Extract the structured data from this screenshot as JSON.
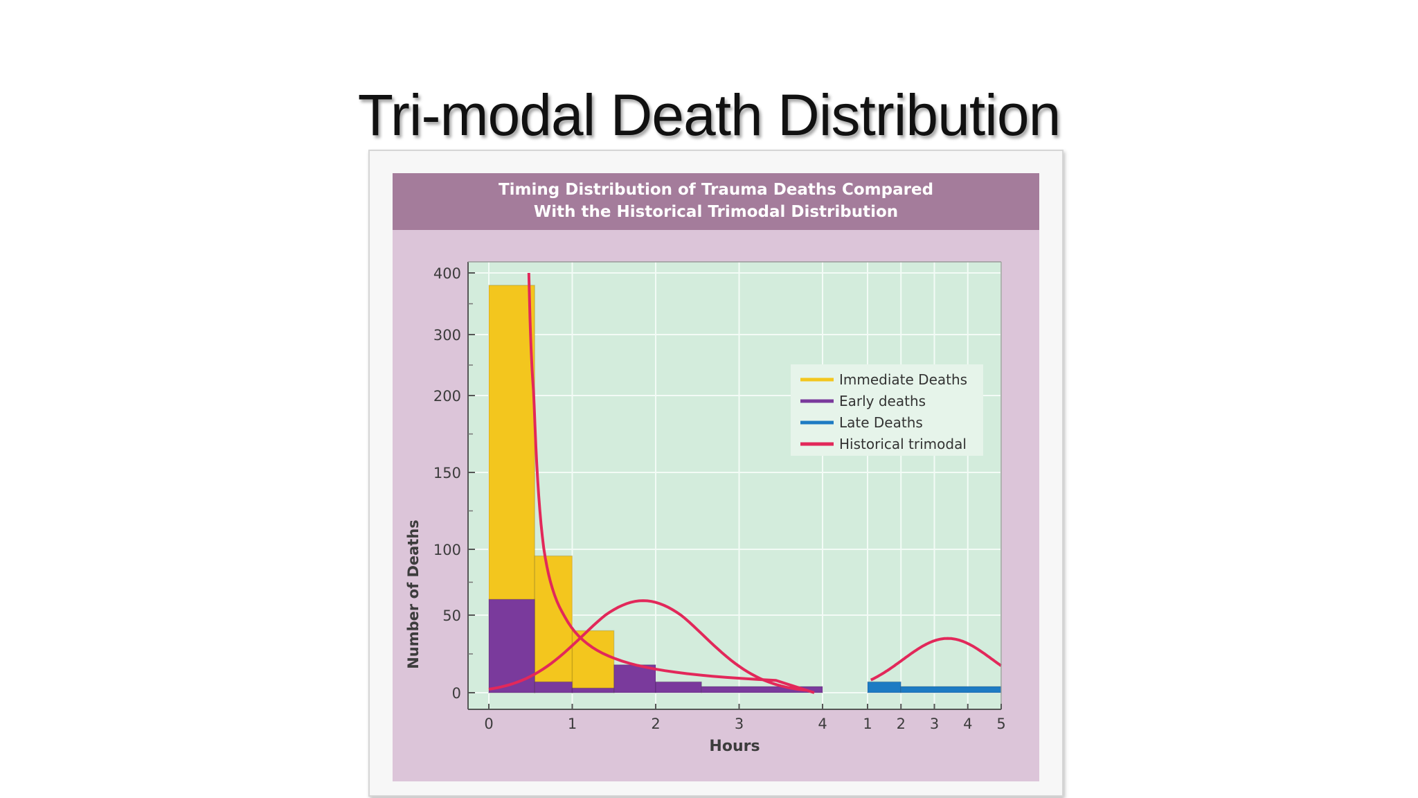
{
  "slide": {
    "title": "Tri-modal Death Distribution"
  },
  "colors": {
    "panel_bg": "#dcc5d9",
    "header_bg": "#a47c9b",
    "plot_bg": "#d3ecdc",
    "grid": "#f3fbf6",
    "immediate": "#f3c61e",
    "early": "#7a3a9c",
    "late": "#1d7bc3",
    "historical": "#e2285a"
  },
  "chart_data": {
    "type": "bar",
    "title": "Timing Distribution of Trauma Deaths Compared",
    "subtitle": "With the Historical Trimodal Distribution",
    "xlabel": "Hours",
    "ylabel": "Number of Deaths",
    "grid": true,
    "legend_position": "top-right",
    "ylim": [
      0,
      400
    ],
    "y_ticks": [
      "0",
      "50",
      "100",
      "150",
      "200",
      "300",
      "400"
    ],
    "y_tick_values": [
      0,
      50,
      100,
      150,
      200,
      300,
      400
    ],
    "x_segments": [
      {
        "name": "hours",
        "range": [
          0,
          4
        ],
        "ticks": [
          "0",
          "1",
          "2",
          "3",
          "4"
        ],
        "tick_values": [
          0,
          1,
          2,
          3,
          4
        ]
      },
      {
        "name": "later",
        "range": [
          1,
          5
        ],
        "ticks": [
          "1",
          "2",
          "3",
          "4",
          "5"
        ],
        "tick_values": [
          1,
          2,
          3,
          4,
          5
        ]
      }
    ],
    "legend": [
      {
        "key": "immediate",
        "label": "Immediate Deaths"
      },
      {
        "key": "early",
        "label": "Early deaths"
      },
      {
        "key": "late",
        "label": "Late Deaths"
      },
      {
        "key": "historical",
        "label": "Historical trimodal"
      }
    ],
    "series": [
      {
        "name": "Immediate Deaths",
        "key": "immediate",
        "segment": "hours",
        "bars": [
          {
            "x0": 0,
            "x1": 0.55,
            "value": 380
          },
          {
            "x0": 0.55,
            "x1": 1.0,
            "value": 95
          },
          {
            "x0": 1.0,
            "x1": 1.5,
            "value": 40
          }
        ]
      },
      {
        "name": "Early deaths",
        "key": "early",
        "segment": "hours",
        "bars": [
          {
            "x0": 0,
            "x1": 0.55,
            "value": 62
          },
          {
            "x0": 0.55,
            "x1": 1.0,
            "value": 7
          },
          {
            "x0": 1.0,
            "x1": 1.5,
            "value": 3
          },
          {
            "x0": 1.5,
            "x1": 2.0,
            "value": 18
          },
          {
            "x0": 2.0,
            "x1": 2.55,
            "value": 7
          },
          {
            "x0": 2.55,
            "x1": 4.0,
            "value": 4
          }
        ]
      },
      {
        "name": "Late Deaths",
        "key": "late",
        "segment": "later",
        "bars": [
          {
            "x0": 1,
            "x1": 2,
            "value": 7
          },
          {
            "x0": 2,
            "x1": 5,
            "value": 4
          }
        ]
      }
    ],
    "historical_trimodal": {
      "name": "Historical trimodal",
      "peak_1": {
        "x": 0.48,
        "value": 400
      },
      "peak_2": {
        "x": 1.85,
        "value": 61
      },
      "peak_3": {
        "segment": "later",
        "x": 3.4,
        "value": 35
      }
    }
  }
}
